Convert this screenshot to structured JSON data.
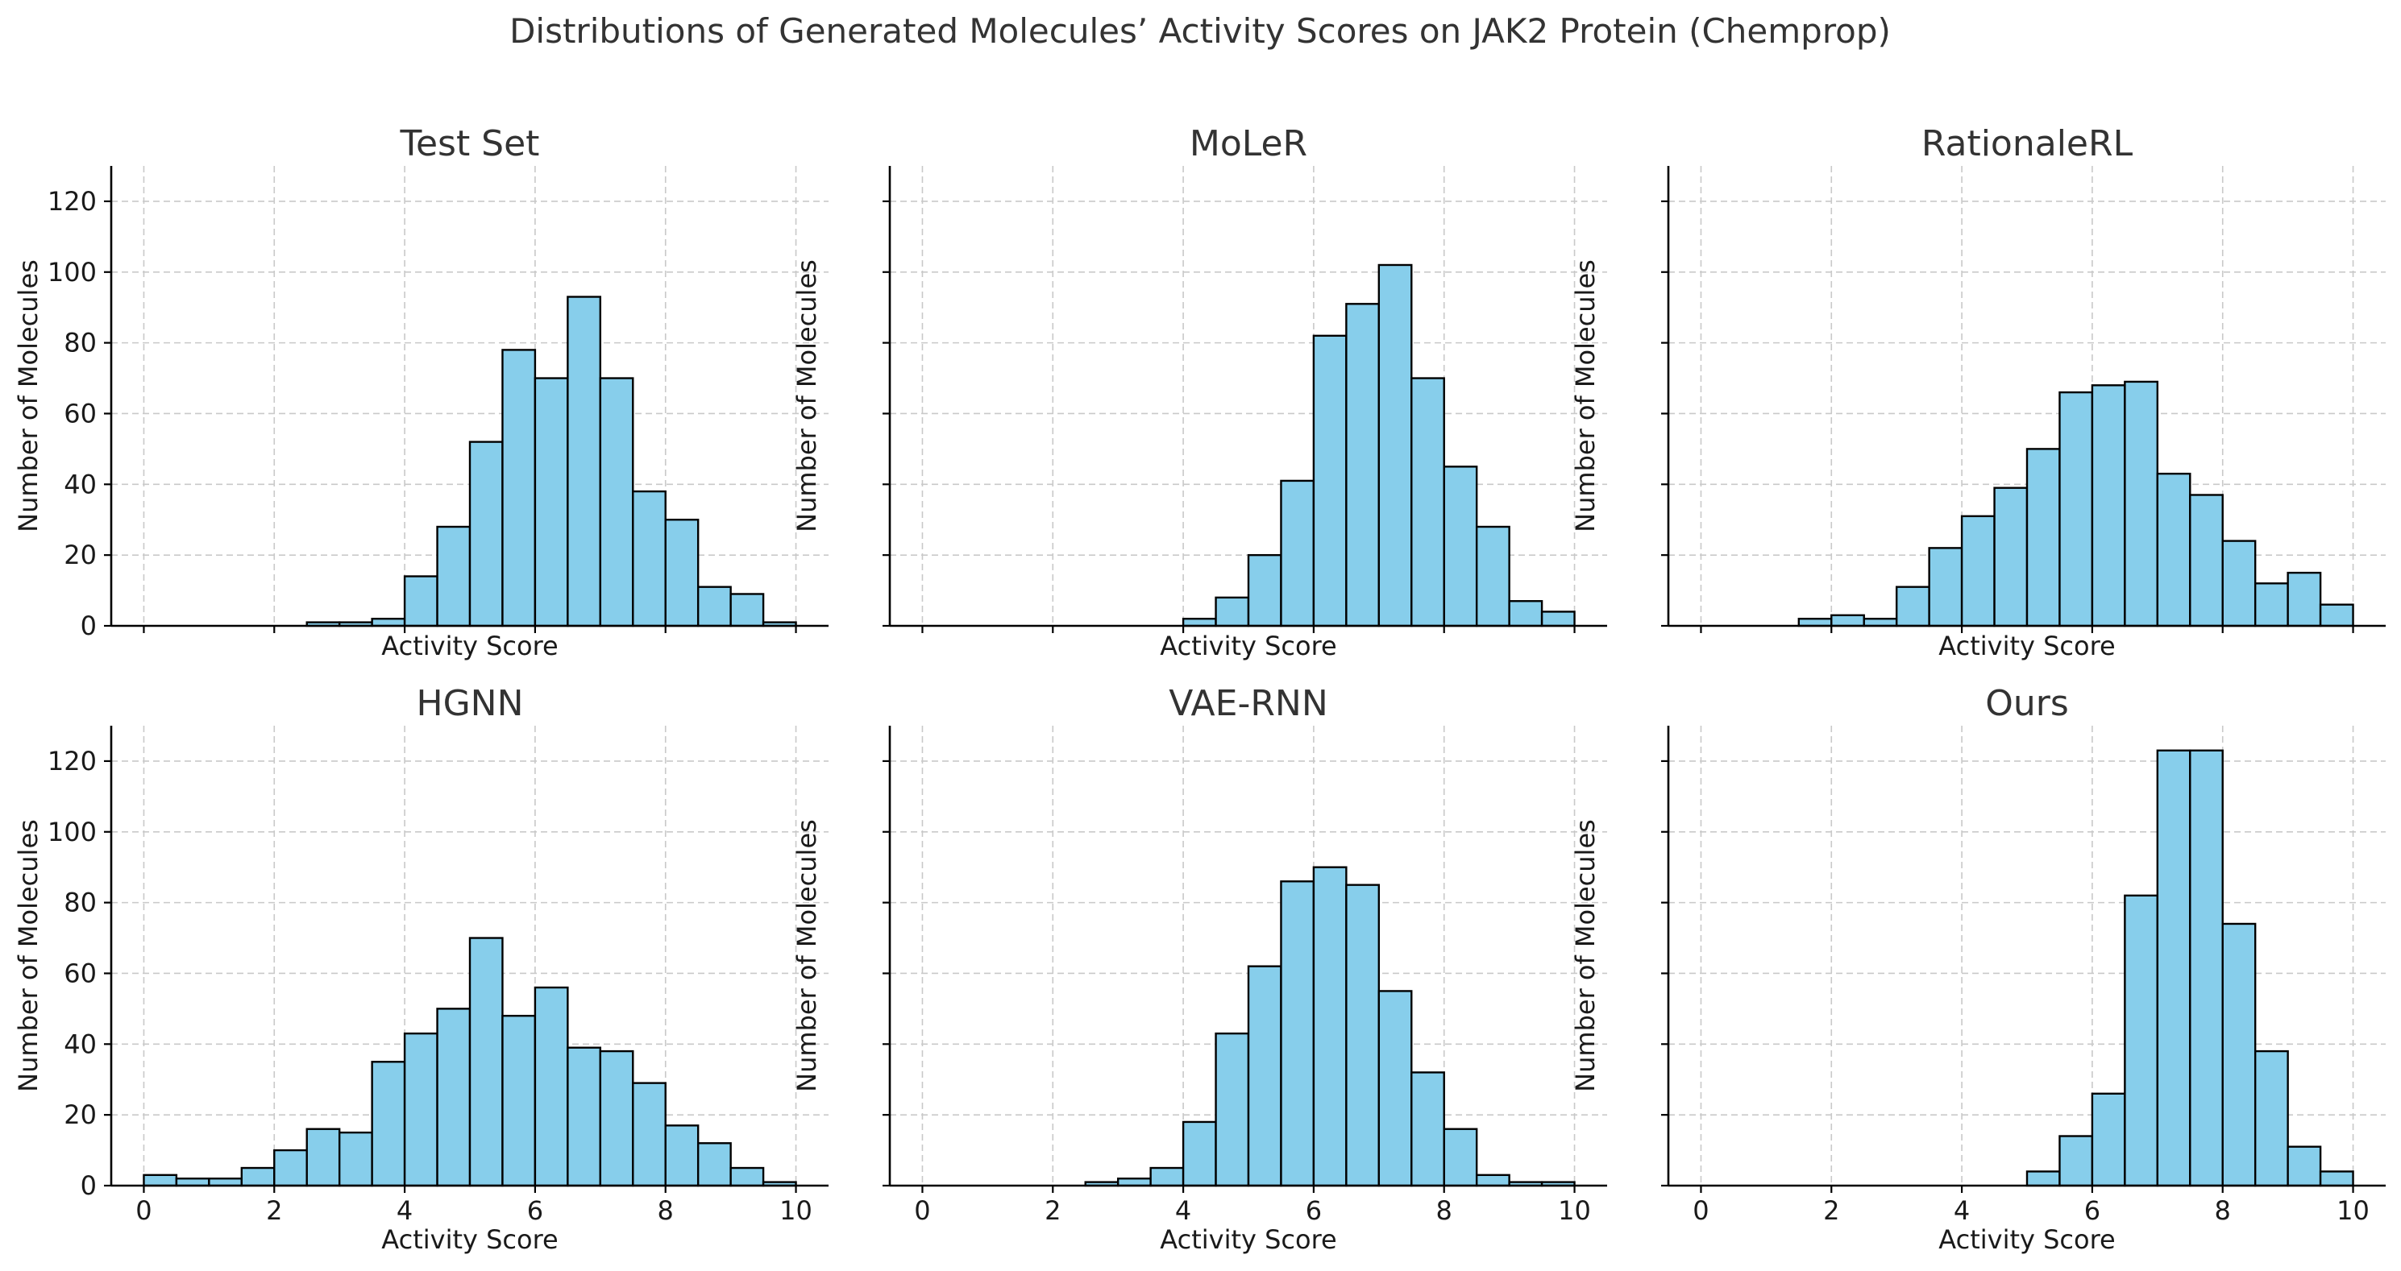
{
  "figure_title": "Distributions of Generated Molecules’ Activity Scores on JAK2 Protein (Chemprop)",
  "colors": {
    "bar_fill": "#87CEEB",
    "bar_edge": "#000000",
    "grid": "#c9c9c9",
    "text": "#333333"
  },
  "chart_data": [
    {
      "type": "bar",
      "title": "Test Set",
      "xlabel": "Activity Score",
      "ylabel": "Number of Molecules",
      "xlim": [
        -0.5,
        10.5
      ],
      "ylim": [
        0,
        130
      ],
      "xticks": [
        0,
        2,
        4,
        6,
        8,
        10
      ],
      "yticks": [
        0,
        20,
        40,
        60,
        80,
        100,
        120
      ],
      "grid": true,
      "bin_edges": [
        2.5,
        3.0,
        3.5,
        4.0,
        4.5,
        5.0,
        5.5,
        6.0,
        6.5,
        7.0,
        7.5,
        8.0,
        8.5,
        9.0,
        9.5,
        10.0
      ],
      "values": [
        1,
        1,
        2,
        14,
        28,
        52,
        78,
        70,
        93,
        70,
        38,
        30,
        11,
        9,
        1
      ]
    },
    {
      "type": "bar",
      "title": "MoLeR",
      "xlabel": "Activity Score",
      "ylabel": "Number of Molecules",
      "xlim": [
        -0.5,
        10.5
      ],
      "ylim": [
        0,
        130
      ],
      "xticks": [
        0,
        2,
        4,
        6,
        8,
        10
      ],
      "yticks": [
        0,
        20,
        40,
        60,
        80,
        100,
        120
      ],
      "grid": true,
      "bin_edges": [
        4.0,
        4.5,
        5.0,
        5.5,
        6.0,
        6.5,
        7.0,
        7.5,
        8.0,
        8.5,
        9.0,
        9.5,
        10.0
      ],
      "values": [
        2,
        8,
        20,
        41,
        82,
        91,
        102,
        70,
        45,
        28,
        7,
        4
      ]
    },
    {
      "type": "bar",
      "title": "RationaleRL",
      "xlabel": "Activity Score",
      "ylabel": "Number of Molecules",
      "xlim": [
        -0.5,
        10.5
      ],
      "ylim": [
        0,
        130
      ],
      "xticks": [
        0,
        2,
        4,
        6,
        8,
        10
      ],
      "yticks": [
        0,
        20,
        40,
        60,
        80,
        100,
        120
      ],
      "grid": true,
      "bin_edges": [
        1.5,
        2.0,
        2.5,
        3.0,
        3.5,
        4.0,
        4.5,
        5.0,
        5.5,
        6.0,
        6.5,
        7.0,
        7.5,
        8.0,
        8.5,
        9.0,
        9.5,
        10.0
      ],
      "values": [
        2,
        3,
        2,
        11,
        22,
        31,
        39,
        50,
        66,
        68,
        69,
        43,
        37,
        24,
        12,
        15,
        6
      ]
    },
    {
      "type": "bar",
      "title": "HGNN",
      "xlabel": "Activity Score",
      "ylabel": "Number of Molecules",
      "xlim": [
        -0.5,
        10.5
      ],
      "ylim": [
        0,
        130
      ],
      "xticks": [
        0,
        2,
        4,
        6,
        8,
        10
      ],
      "yticks": [
        0,
        20,
        40,
        60,
        80,
        100,
        120
      ],
      "grid": true,
      "bin_edges": [
        0.0,
        0.5,
        1.0,
        1.5,
        2.0,
        2.5,
        3.0,
        3.5,
        4.0,
        4.5,
        5.0,
        5.5,
        6.0,
        6.5,
        7.0,
        7.5,
        8.0,
        8.5,
        9.0,
        9.5,
        10.0
      ],
      "values": [
        3,
        2,
        2,
        5,
        10,
        16,
        15,
        35,
        43,
        50,
        70,
        48,
        56,
        39,
        38,
        29,
        17,
        12,
        5,
        1
      ]
    },
    {
      "type": "bar",
      "title": "VAE-RNN",
      "xlabel": "Activity Score",
      "ylabel": "Number of Molecules",
      "xlim": [
        -0.5,
        10.5
      ],
      "ylim": [
        0,
        130
      ],
      "xticks": [
        0,
        2,
        4,
        6,
        8,
        10
      ],
      "yticks": [
        0,
        20,
        40,
        60,
        80,
        100,
        120
      ],
      "grid": true,
      "bin_edges": [
        2.5,
        3.0,
        3.5,
        4.0,
        4.5,
        5.0,
        5.5,
        6.0,
        6.5,
        7.0,
        7.5,
        8.0,
        8.5,
        9.0,
        9.5,
        10.0
      ],
      "values": [
        1,
        2,
        5,
        18,
        43,
        62,
        86,
        90,
        85,
        55,
        32,
        16,
        3,
        1,
        1
      ]
    },
    {
      "type": "bar",
      "title": "Ours",
      "xlabel": "Activity Score",
      "ylabel": "Number of Molecules",
      "xlim": [
        -0.5,
        10.5
      ],
      "ylim": [
        0,
        130
      ],
      "xticks": [
        0,
        2,
        4,
        6,
        8,
        10
      ],
      "yticks": [
        0,
        20,
        40,
        60,
        80,
        100,
        120
      ],
      "grid": true,
      "bin_edges": [
        5.0,
        5.5,
        6.0,
        6.5,
        7.0,
        7.5,
        8.0,
        8.5,
        9.0,
        9.5,
        10.0
      ],
      "values": [
        4,
        14,
        26,
        82,
        123,
        123,
        74,
        38,
        11,
        4
      ]
    }
  ]
}
